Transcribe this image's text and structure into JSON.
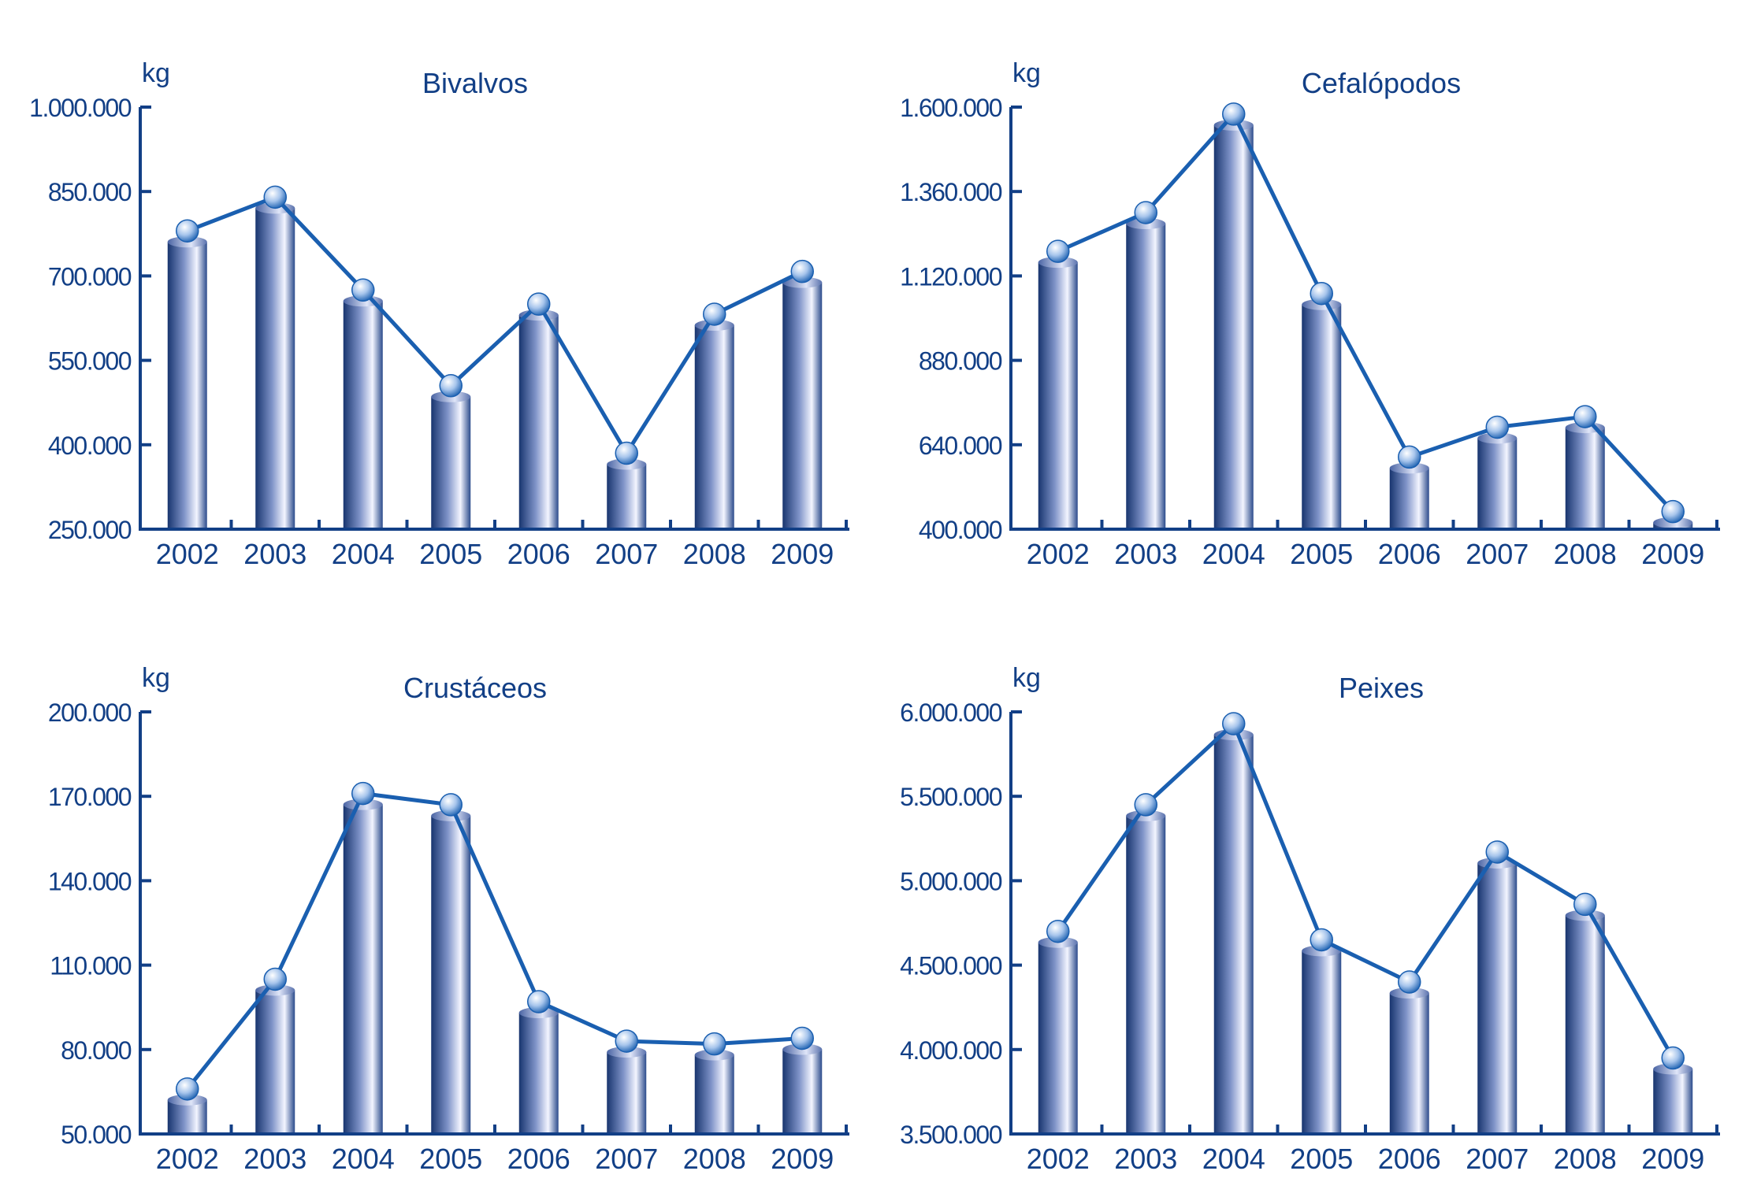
{
  "colors": {
    "text": "#123f86",
    "axis": "#123f86",
    "line": "#1a5fb0",
    "bar_dark": "#18356f",
    "bar_light": "#f3f5ff",
    "marker_light": "#ffffff",
    "marker_dark": "#1a5fb0"
  },
  "chart_data": [
    {
      "type": "bar",
      "title": "Bivalvos",
      "ylabel": "kg",
      "xlabel": "",
      "categories": [
        "2002",
        "2003",
        "2004",
        "2005",
        "2006",
        "2007",
        "2008",
        "2009"
      ],
      "values": [
        780000,
        840000,
        675000,
        505000,
        650000,
        385000,
        632000,
        708000
      ],
      "ylim": [
        250000,
        1000000
      ],
      "ytick_values": [
        250000,
        400000,
        550000,
        700000,
        850000,
        1000000
      ],
      "ytick_labels": [
        "250.000",
        "400.000",
        "550.000",
        "700.000",
        "850.000",
        "1.000.000"
      ],
      "overlay": "line-with-markers",
      "grid": false
    },
    {
      "type": "bar",
      "title": "Cefalópodos",
      "ylabel": "kg",
      "xlabel": "",
      "categories": [
        "2002",
        "2003",
        "2004",
        "2005",
        "2006",
        "2007",
        "2008",
        "2009"
      ],
      "values": [
        1190000,
        1300000,
        1580000,
        1070000,
        605000,
        690000,
        720000,
        450000
      ],
      "ylim": [
        400000,
        1600000
      ],
      "ytick_values": [
        400000,
        640000,
        880000,
        1120000,
        1360000,
        1600000
      ],
      "ytick_labels": [
        "400.000",
        "640.000",
        "880.000",
        "1.120.000",
        "1.360.000",
        "1.600.000"
      ],
      "overlay": "line-with-markers",
      "grid": false
    },
    {
      "type": "bar",
      "title": "Crustáceos",
      "ylabel": "kg",
      "xlabel": "",
      "categories": [
        "2002",
        "2003",
        "2004",
        "2005",
        "2006",
        "2007",
        "2008",
        "2009"
      ],
      "values": [
        66000,
        105000,
        171000,
        167000,
        97000,
        83000,
        82000,
        84000
      ],
      "ylim": [
        50000,
        200000
      ],
      "ytick_values": [
        50000,
        80000,
        110000,
        140000,
        170000,
        200000
      ],
      "ytick_labels": [
        "50.000",
        "80.000",
        "110.000",
        "140.000",
        "170.000",
        "200.000"
      ],
      "overlay": "line-with-markers",
      "grid": false
    },
    {
      "type": "bar",
      "title": "Peixes",
      "ylabel": "kg",
      "xlabel": "",
      "categories": [
        "2002",
        "2003",
        "2004",
        "2005",
        "2006",
        "2007",
        "2008",
        "2009"
      ],
      "values": [
        4700000,
        5450000,
        5930000,
        4650000,
        4400000,
        5170000,
        4860000,
        3950000
      ],
      "ylim": [
        3500000,
        6000000
      ],
      "ytick_values": [
        3500000,
        4000000,
        4500000,
        5000000,
        5500000,
        6000000
      ],
      "ytick_labels": [
        "3.500.000",
        "4.000.000",
        "4.500.000",
        "5.000.000",
        "5.500.000",
        "6.000.000"
      ],
      "overlay": "line-with-markers",
      "grid": false
    }
  ]
}
